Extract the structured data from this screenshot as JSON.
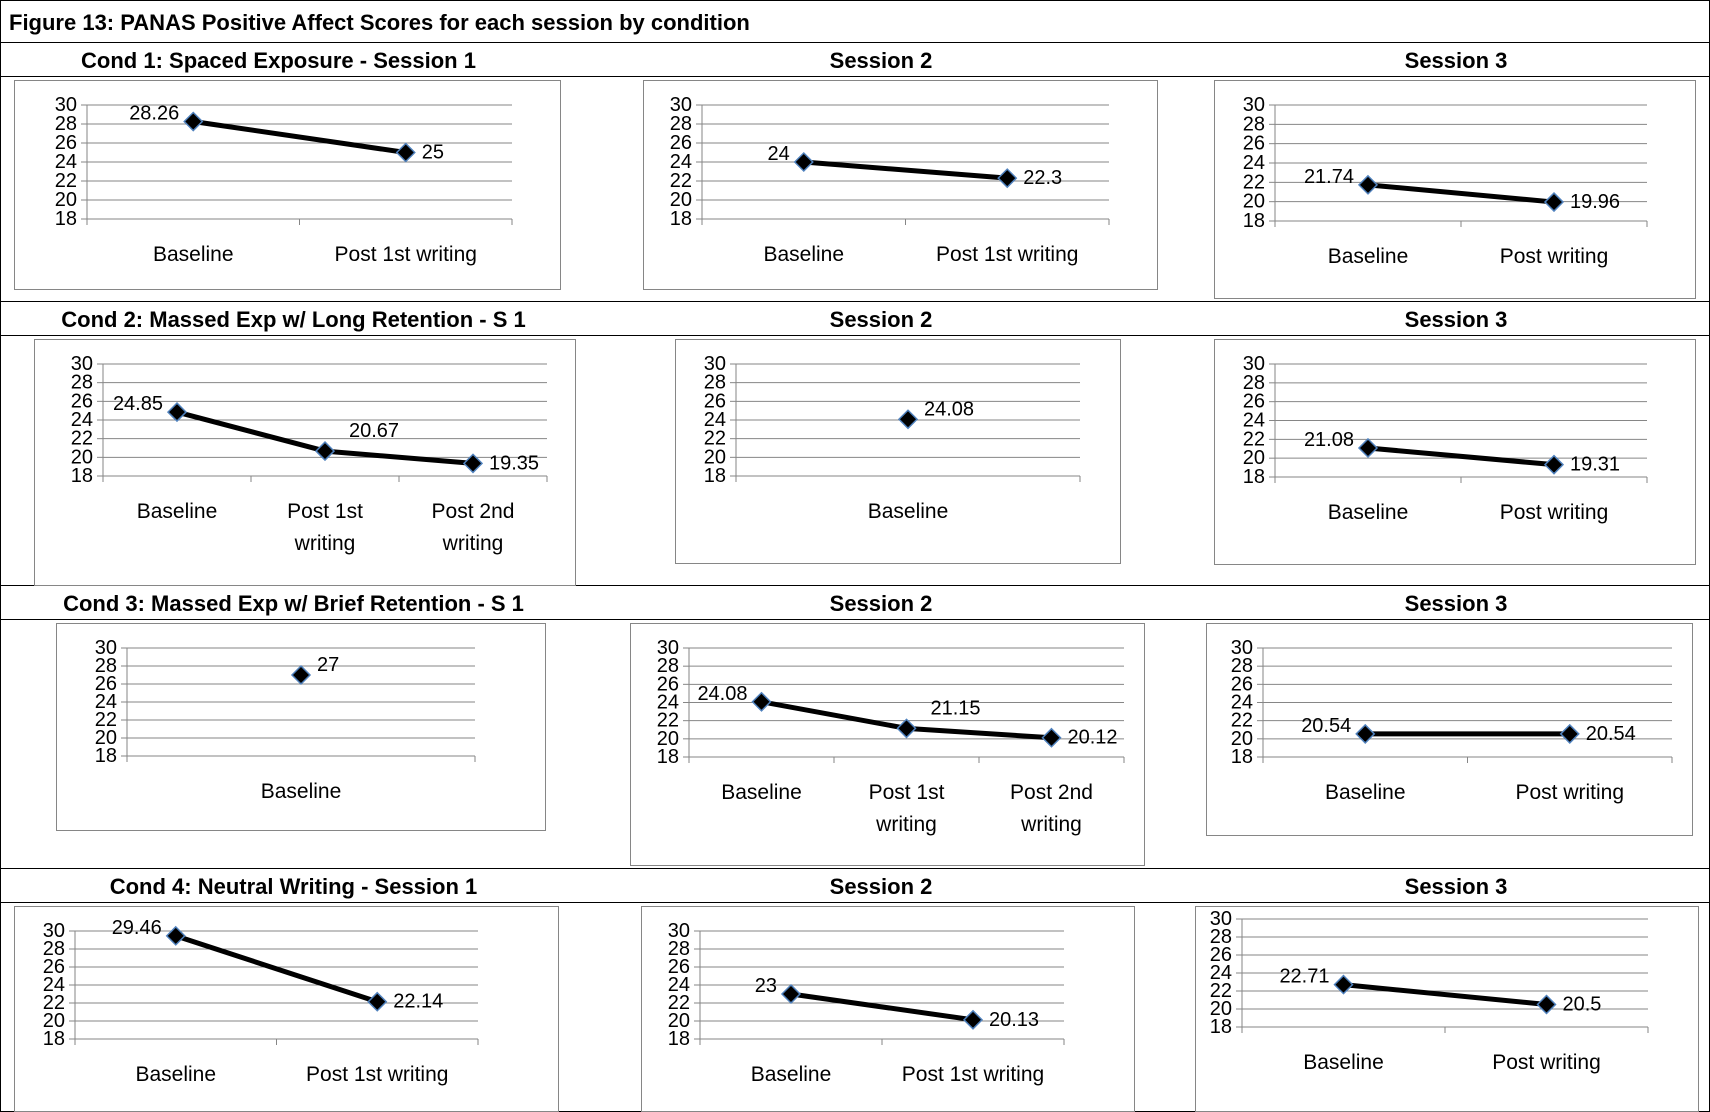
{
  "figure_title": "Figure 13: PANAS Positive Affect Scores for each session by condition",
  "chart_data": [
    {
      "type": "line",
      "title": "Cond 1: Spaced Exposure - Session 1",
      "categories": [
        "Baseline",
        "Post 1st writing"
      ],
      "values": [
        28.26,
        25
      ],
      "data_labels": [
        "28.26",
        "25"
      ],
      "ylim": [
        18,
        30
      ],
      "yticks": [
        "18",
        "20",
        "22",
        "24",
        "26",
        "28",
        "30"
      ],
      "grid": true,
      "line_color": "#000000",
      "marker_color": "#000000",
      "marker_outline": "#4f81bd"
    },
    {
      "type": "line",
      "title": "Session 2",
      "categories": [
        "Baseline",
        "Post 1st writing"
      ],
      "values": [
        24,
        22.3
      ],
      "data_labels": [
        "24",
        "22.3"
      ],
      "ylim": [
        18,
        30
      ],
      "yticks": [
        "18",
        "20",
        "22",
        "24",
        "26",
        "28",
        "30"
      ],
      "grid": true
    },
    {
      "type": "line",
      "title": "Session 3",
      "categories": [
        "Baseline",
        "Post writing"
      ],
      "values": [
        21.74,
        19.96
      ],
      "data_labels": [
        "21.74",
        "19.96"
      ],
      "ylim": [
        18,
        30
      ],
      "yticks": [
        "18",
        "20",
        "22",
        "24",
        "26",
        "28",
        "30"
      ],
      "grid": true
    },
    {
      "type": "line",
      "title": "Cond 2: Massed Exp w/ Long Retention - S 1",
      "categories": [
        "Baseline",
        "Post 1st writing",
        "Post 2nd writing"
      ],
      "values": [
        24.85,
        20.67,
        19.35
      ],
      "data_labels": [
        "24.85",
        "20.67",
        "19.35"
      ],
      "ylim": [
        18,
        30
      ],
      "yticks": [
        "18",
        "20",
        "22",
        "24",
        "26",
        "28",
        "30"
      ],
      "grid": true
    },
    {
      "type": "line",
      "title": "Session 2",
      "categories": [
        "Baseline"
      ],
      "values": [
        24.08
      ],
      "data_labels": [
        "24.08"
      ],
      "ylim": [
        18,
        30
      ],
      "yticks": [
        "18",
        "20",
        "22",
        "24",
        "26",
        "28",
        "30"
      ],
      "grid": true
    },
    {
      "type": "line",
      "title": "Session 3",
      "categories": [
        "Baseline",
        "Post writing"
      ],
      "values": [
        21.08,
        19.31
      ],
      "data_labels": [
        "21.08",
        "19.31"
      ],
      "ylim": [
        18,
        30
      ],
      "yticks": [
        "18",
        "20",
        "22",
        "24",
        "26",
        "28",
        "30"
      ],
      "grid": true
    },
    {
      "type": "line",
      "title": "Cond 3: Massed Exp w/ Brief Retention - S 1",
      "categories": [
        "Baseline"
      ],
      "values": [
        27
      ],
      "data_labels": [
        "27"
      ],
      "ylim": [
        18,
        30
      ],
      "yticks": [
        "18",
        "20",
        "22",
        "24",
        "26",
        "28",
        "30"
      ],
      "grid": true
    },
    {
      "type": "line",
      "title": "Session 2",
      "categories": [
        "Baseline",
        "Post 1st writing",
        "Post 2nd writing"
      ],
      "values": [
        24.08,
        21.15,
        20.12
      ],
      "data_labels": [
        "24.08",
        "21.15",
        "20.12"
      ],
      "ylim": [
        18,
        30
      ],
      "yticks": [
        "18",
        "20",
        "22",
        "24",
        "26",
        "28",
        "30"
      ],
      "grid": true
    },
    {
      "type": "line",
      "title": "Session 3",
      "categories": [
        "Baseline",
        "Post writing"
      ],
      "values": [
        20.54,
        20.54
      ],
      "data_labels": [
        "20.54",
        "20.54"
      ],
      "ylim": [
        18,
        30
      ],
      "yticks": [
        "18",
        "20",
        "22",
        "24",
        "26",
        "28",
        "30"
      ],
      "grid": true
    },
    {
      "type": "line",
      "title": "Cond 4: Neutral Writing - Session 1",
      "categories": [
        "Baseline",
        "Post 1st writing"
      ],
      "values": [
        29.46,
        22.14
      ],
      "data_labels": [
        "29.46",
        "22.14"
      ],
      "ylim": [
        18,
        30
      ],
      "yticks": [
        "18",
        "20",
        "22",
        "24",
        "26",
        "28",
        "30"
      ],
      "grid": true
    },
    {
      "type": "line",
      "title": "Session 2",
      "categories": [
        "Baseline",
        "Post 1st writing"
      ],
      "values": [
        23,
        20.13
      ],
      "data_labels": [
        "23",
        "20.13"
      ],
      "ylim": [
        18,
        30
      ],
      "yticks": [
        "18",
        "20",
        "22",
        "24",
        "26",
        "28",
        "30"
      ],
      "grid": true
    },
    {
      "type": "line",
      "title": "Session 3",
      "categories": [
        "Baseline",
        "Post writing"
      ],
      "values": [
        22.71,
        20.5
      ],
      "data_labels": [
        "22.71",
        "20.5"
      ],
      "ylim": [
        18,
        30
      ],
      "yticks": [
        "18",
        "20",
        "22",
        "24",
        "26",
        "28",
        "30"
      ],
      "grid": true
    }
  ]
}
